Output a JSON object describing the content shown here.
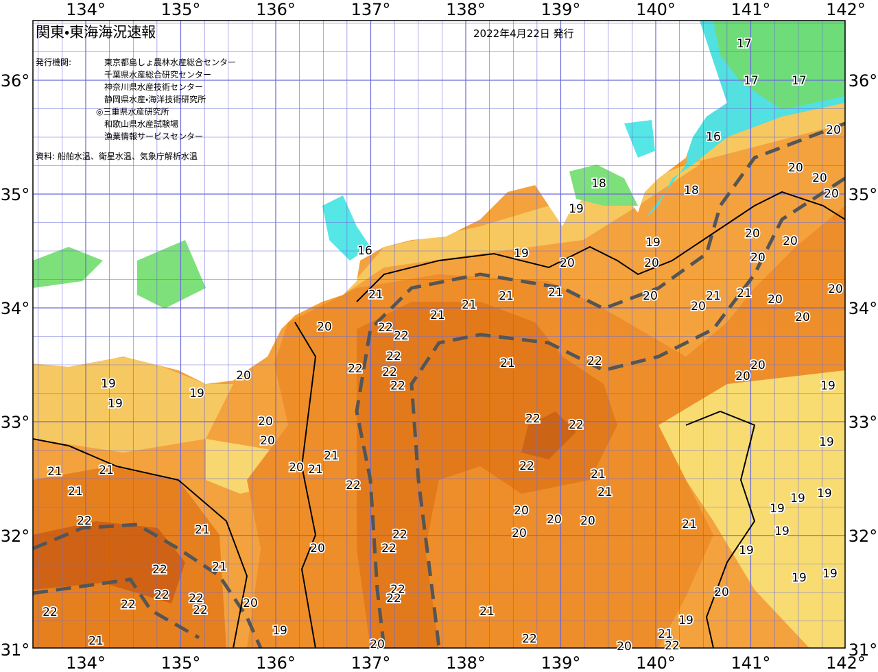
{
  "header": {
    "title": "関東・東海海況速報",
    "date": "2022年4月22日 発行"
  },
  "issuers": {
    "label": "発行機関:",
    "list": [
      "東京都島しょ農林水産総合センター",
      "千葉県水産総合研究センター",
      "神奈川県水産技術センター",
      "静岡県水産・海洋技術研究所",
      "◎三重県水産研究所",
      "和歌山県水産試験場",
      "漁業情報サービスセンター"
    ]
  },
  "source": "資料: 船舶水温、衛星水温、気象庁解析水温",
  "map": {
    "lon_labels": [
      "134°",
      "135°",
      "136°",
      "137°",
      "138°",
      "139°",
      "140°",
      "141°",
      "142°"
    ],
    "lat_labels": [
      "36°",
      "35°",
      "34°",
      "33°",
      "32°",
      "31°"
    ],
    "temperature_labels": [
      21,
      20,
      22,
      22,
      22,
      22,
      22,
      22,
      21,
      21,
      21,
      21,
      20,
      19,
      16,
      18,
      19,
      19,
      20,
      20,
      20,
      21,
      21,
      20,
      20,
      20,
      20,
      20,
      20,
      16,
      18,
      17,
      17,
      17,
      20,
      20,
      20,
      20,
      21,
      22,
      22,
      22,
      22,
      21,
      21,
      20,
      20,
      20,
      20,
      21,
      20,
      20,
      19,
      19,
      19,
      19,
      19,
      19,
      19,
      19,
      19,
      20,
      19,
      21,
      20,
      22,
      21,
      22,
      22,
      22,
      22,
      22,
      22,
      21,
      21,
      20,
      20,
      20,
      20,
      21,
      21,
      22,
      22,
      22,
      22,
      22,
      22,
      22,
      21,
      21,
      21,
      21,
      20,
      19,
      20,
      19,
      19,
      19,
      20
    ]
  }
}
